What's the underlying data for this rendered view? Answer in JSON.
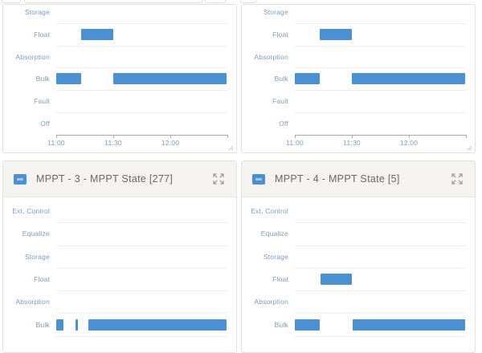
{
  "colors": {
    "bar": "#4a90d2",
    "category_label": "#7d9cc0",
    "axis": "#a8a8a8",
    "gridline": "#ededed",
    "panel_border": "#e3e1de",
    "header_background": "#f5f3ef",
    "header_text": "#6b6764",
    "icon_gray": "#a09c98"
  },
  "icons": {
    "expand": "expand-arrows-icon",
    "legend": "legend-color-swatch-icon",
    "resize": "resize-corner-icon"
  },
  "chart_data": [
    {
      "type": "bar",
      "variant": "state-timeline",
      "panel_title": "",
      "categories": [
        "Storage",
        "Float",
        "Absorption",
        "Bulk",
        "Fault",
        "Off"
      ],
      "x_axis": {
        "visible": true,
        "min_minutes": 0,
        "max_minutes": 90,
        "start_time": "11:00",
        "ticks": [
          {
            "minutes": 0,
            "label": "11:00"
          },
          {
            "minutes": 30,
            "label": "11:30"
          },
          {
            "minutes": 60,
            "label": "12:00"
          },
          {
            "minutes": 90,
            "label": ""
          }
        ]
      },
      "bars": [
        {
          "category": "Bulk",
          "start_minutes": 0,
          "end_minutes": 13
        },
        {
          "category": "Float",
          "start_minutes": 13,
          "end_minutes": 30
        },
        {
          "category": "Bulk",
          "start_minutes": 30,
          "end_minutes": 89.5
        }
      ]
    },
    {
      "type": "bar",
      "variant": "state-timeline",
      "panel_title": "",
      "categories": [
        "Storage",
        "Float",
        "Absorption",
        "Bulk",
        "Fault",
        "Off"
      ],
      "x_axis": {
        "visible": true,
        "min_minutes": 0,
        "max_minutes": 90,
        "start_time": "11:00",
        "ticks": [
          {
            "minutes": 0,
            "label": "11:00"
          },
          {
            "minutes": 30,
            "label": "11:30"
          },
          {
            "minutes": 60,
            "label": "12:00"
          },
          {
            "minutes": 90,
            "label": ""
          }
        ]
      },
      "bars": [
        {
          "category": "Bulk",
          "start_minutes": 0,
          "end_minutes": 13
        },
        {
          "category": "Float",
          "start_minutes": 13,
          "end_minutes": 30
        },
        {
          "category": "Bulk",
          "start_minutes": 30,
          "end_minutes": 89.5
        }
      ]
    },
    {
      "type": "bar",
      "variant": "state-timeline",
      "panel_title": "MPPT - 3 - MPPT State [277]",
      "categories": [
        "Ext. Control",
        "Equalize",
        "Storage",
        "Float",
        "Absorption",
        "Bulk"
      ],
      "x_axis": {
        "visible": false,
        "min_minutes": 0,
        "max_minutes": 90,
        "start_time": "11:00",
        "ticks": []
      },
      "bars": [
        {
          "category": "Bulk",
          "start_minutes": 0,
          "end_minutes": 4
        },
        {
          "category": "Bulk",
          "start_minutes": 10,
          "end_minutes": 11.5
        },
        {
          "category": "Bulk",
          "start_minutes": 17,
          "end_minutes": 89.5
        }
      ]
    },
    {
      "type": "bar",
      "variant": "state-timeline",
      "panel_title": "MPPT - 4 - MPPT State [5]",
      "categories": [
        "Ext. Control",
        "Equalize",
        "Storage",
        "Float",
        "Absorption",
        "Bulk"
      ],
      "x_axis": {
        "visible": false,
        "min_minutes": 0,
        "max_minutes": 90,
        "start_time": "11:00",
        "ticks": []
      },
      "bars": [
        {
          "category": "Float",
          "start_minutes": 13.5,
          "end_minutes": 30
        },
        {
          "category": "Bulk",
          "start_minutes": 0,
          "end_minutes": 13
        },
        {
          "category": "Bulk",
          "start_minutes": 30.5,
          "end_minutes": 89.5
        }
      ]
    }
  ]
}
